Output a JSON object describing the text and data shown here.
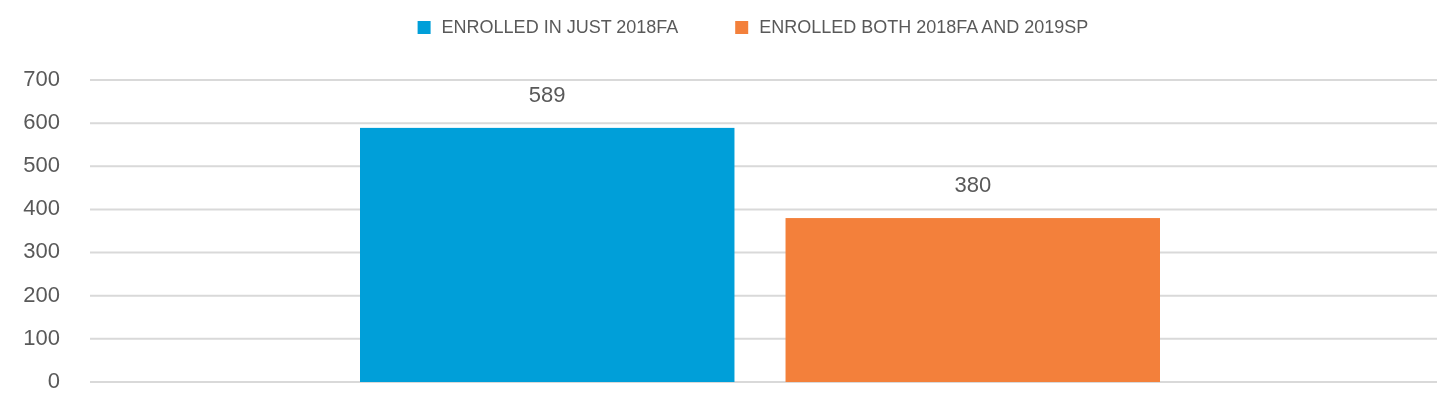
{
  "chart_data": {
    "type": "bar",
    "categories": [
      null
    ],
    "series": [
      {
        "name": "ENROLLED IN JUST 2018FA",
        "color": "#009fd9",
        "values": [
          589
        ]
      },
      {
        "name": "ENROLLED BOTH 2018FA AND 2019SP",
        "color": "#f3803b",
        "values": [
          380
        ]
      }
    ],
    "ylim": [
      0,
      700
    ],
    "yticks": [
      0,
      100,
      200,
      300,
      400,
      500,
      600,
      700
    ],
    "grid": "y",
    "legend": "top",
    "data_labels": true
  }
}
